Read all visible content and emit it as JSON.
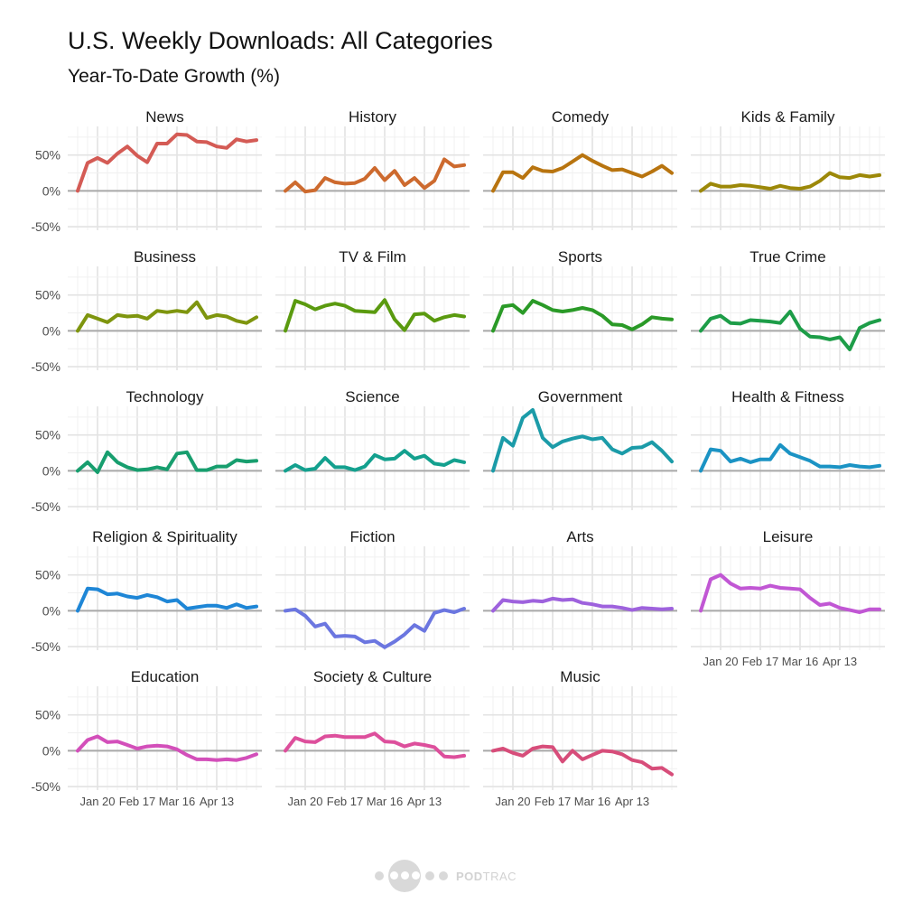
{
  "title": "U.S. Weekly Downloads: All Categories",
  "subtitle": "Year-To-Date Growth (%)",
  "logo": {
    "bold": "POD",
    "light": "TRAC"
  },
  "chart_data": {
    "type": "line",
    "title": "U.S. Weekly Downloads: All Categories",
    "subtitle": "Year-To-Date Growth (%)",
    "xlabel": "",
    "ylabel": "",
    "x_weeks": [
      "Jan 6",
      "Jan 13",
      "Jan 20",
      "Jan 27",
      "Feb 3",
      "Feb 10",
      "Feb 17",
      "Feb 24",
      "Mar 2",
      "Mar 9",
      "Mar 16",
      "Mar 23",
      "Mar 30",
      "Apr 6",
      "Apr 13",
      "Apr 20",
      "Apr 27",
      "May 4",
      "May 11"
    ],
    "x_tick_labels": [
      "Jan 20",
      "Feb 17",
      "Mar 16",
      "Apr 13"
    ],
    "y_tick_labels": [
      "50%",
      "0%",
      "-50%"
    ],
    "y_ticks": [
      50,
      0,
      -50
    ],
    "ylim": [
      -55,
      90
    ],
    "grid": true,
    "reference_line": 0,
    "layout": "facet grid 4 columns",
    "series": [
      {
        "name": "News",
        "color": "#d45b55",
        "values": [
          0,
          39,
          46,
          39,
          52,
          62,
          49,
          40,
          66,
          66,
          79,
          78,
          69,
          68,
          62,
          60,
          72,
          69,
          71
        ]
      },
      {
        "name": "History",
        "color": "#cd6a2e",
        "values": [
          0,
          12,
          -1,
          1,
          18,
          12,
          10,
          11,
          17,
          32,
          15,
          28,
          8,
          18,
          4,
          14,
          44,
          34,
          36
        ]
      },
      {
        "name": "Comedy",
        "color": "#b8740f",
        "values": [
          0,
          26,
          26,
          18,
          33,
          28,
          27,
          32,
          41,
          50,
          42,
          35,
          29,
          30,
          25,
          20,
          27,
          35,
          25
        ]
      },
      {
        "name": "Kids & Family",
        "color": "#9c8808",
        "values": [
          0,
          10,
          6,
          6,
          8,
          7,
          5,
          3,
          7,
          4,
          3,
          6,
          14,
          25,
          19,
          18,
          22,
          20,
          22
        ]
      },
      {
        "name": "Business",
        "color": "#7e950e",
        "values": [
          0,
          22,
          17,
          12,
          22,
          20,
          21,
          17,
          28,
          26,
          28,
          26,
          40,
          18,
          22,
          20,
          14,
          11,
          19
        ]
      },
      {
        "name": "TV & Film",
        "color": "#5a9a0f",
        "values": [
          0,
          42,
          37,
          30,
          35,
          38,
          35,
          28,
          27,
          26,
          43,
          16,
          1,
          23,
          24,
          14,
          19,
          22,
          20
        ]
      },
      {
        "name": "Sports",
        "color": "#2a9a27",
        "values": [
          0,
          34,
          36,
          25,
          42,
          36,
          29,
          27,
          29,
          32,
          29,
          21,
          9,
          8,
          2,
          9,
          19,
          17,
          16
        ]
      },
      {
        "name": "True Crime",
        "color": "#1d9d48",
        "values": [
          0,
          17,
          21,
          11,
          10,
          15,
          14,
          13,
          11,
          27,
          3,
          -8,
          -9,
          -12,
          -9,
          -26,
          4,
          11,
          15
        ]
      },
      {
        "name": "Technology",
        "color": "#179e6e",
        "values": [
          0,
          12,
          -2,
          26,
          12,
          5,
          1,
          2,
          5,
          2,
          24,
          26,
          1,
          1,
          6,
          6,
          15,
          13,
          14
        ]
      },
      {
        "name": "Science",
        "color": "#13a08e",
        "values": [
          0,
          8,
          1,
          3,
          18,
          5,
          5,
          1,
          6,
          22,
          16,
          17,
          28,
          17,
          21,
          10,
          8,
          15,
          12
        ]
      },
      {
        "name": "Government",
        "color": "#1b9ba8",
        "values": [
          0,
          46,
          35,
          74,
          85,
          46,
          33,
          41,
          45,
          48,
          44,
          46,
          30,
          24,
          32,
          33,
          40,
          28,
          13
        ]
      },
      {
        "name": "Health & Fitness",
        "color": "#1b93c4",
        "values": [
          0,
          30,
          28,
          13,
          17,
          12,
          16,
          16,
          36,
          24,
          19,
          14,
          6,
          6,
          5,
          8,
          6,
          5,
          7
        ]
      },
      {
        "name": "Religion & Spirituality",
        "color": "#1e86d6",
        "values": [
          0,
          31,
          30,
          23,
          24,
          20,
          18,
          22,
          19,
          13,
          15,
          3,
          5,
          7,
          7,
          4,
          9,
          4,
          6
        ]
      },
      {
        "name": "Fiction",
        "color": "#6b76e0",
        "values": [
          0,
          2,
          -7,
          -22,
          -18,
          -36,
          -35,
          -36,
          -44,
          -42,
          -51,
          -43,
          -33,
          -20,
          -28,
          -3,
          1,
          -2,
          3
        ]
      },
      {
        "name": "Arts",
        "color": "#9e62dd",
        "values": [
          0,
          15,
          13,
          12,
          14,
          13,
          17,
          15,
          16,
          11,
          9,
          6,
          6,
          4,
          1,
          4,
          3,
          2,
          3
        ]
      },
      {
        "name": "Leisure",
        "color": "#c157d4",
        "values": [
          0,
          44,
          50,
          38,
          31,
          32,
          31,
          35,
          32,
          31,
          30,
          18,
          8,
          10,
          4,
          1,
          -2,
          2,
          2
        ]
      },
      {
        "name": "Education",
        "color": "#d34fba",
        "values": [
          0,
          15,
          20,
          12,
          13,
          8,
          3,
          6,
          7,
          6,
          2,
          -6,
          -12,
          -12,
          -13,
          -12,
          -13,
          -10,
          -5
        ]
      },
      {
        "name": "Society & Culture",
        "color": "#dd4f9c",
        "values": [
          0,
          18,
          13,
          12,
          20,
          21,
          19,
          19,
          19,
          24,
          13,
          12,
          6,
          10,
          8,
          5,
          -8,
          -9,
          -7
        ]
      },
      {
        "name": "Music",
        "color": "#d74d7a",
        "values": [
          0,
          3,
          -3,
          -7,
          3,
          6,
          5,
          -15,
          0,
          -12,
          -6,
          0,
          -1,
          -5,
          -13,
          -16,
          -25,
          -24,
          -33
        ]
      }
    ]
  }
}
